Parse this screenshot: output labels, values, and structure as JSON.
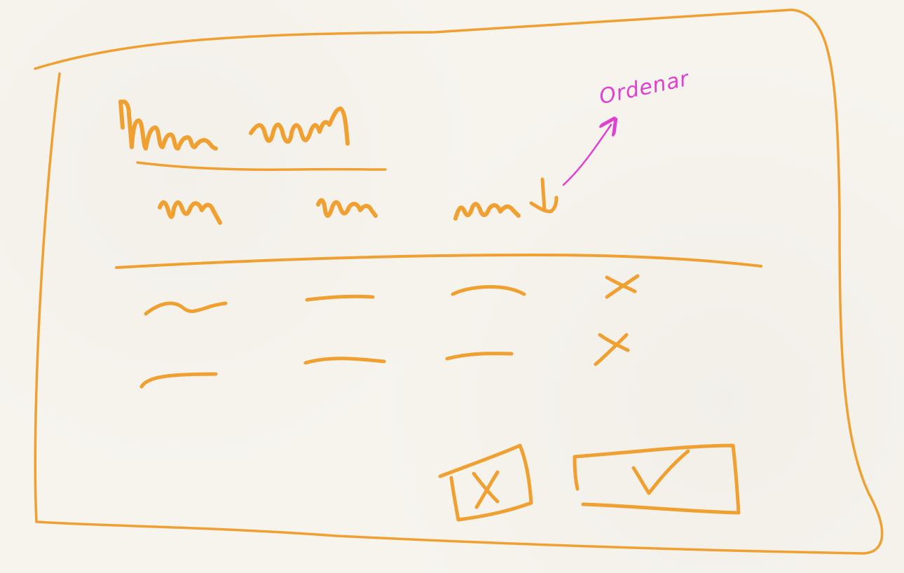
{
  "colors": {
    "sketch": "#f0a030",
    "annotation": "#e040d0",
    "paper": "#f7f4ee"
  },
  "dialog": {
    "title": "",
    "columns": [
      "",
      "",
      ""
    ],
    "sort_indicator": "sort-arrow-down-icon",
    "rows": [
      {
        "cells": [
          "",
          "",
          ""
        ],
        "action": "delete-x-icon"
      },
      {
        "cells": [
          "",
          "",
          ""
        ],
        "action": "delete-x-icon"
      }
    ],
    "buttons": {
      "cancel": "cancel-x-icon",
      "confirm": "confirm-check-icon"
    }
  },
  "annotation": {
    "text": "Ordenar"
  }
}
